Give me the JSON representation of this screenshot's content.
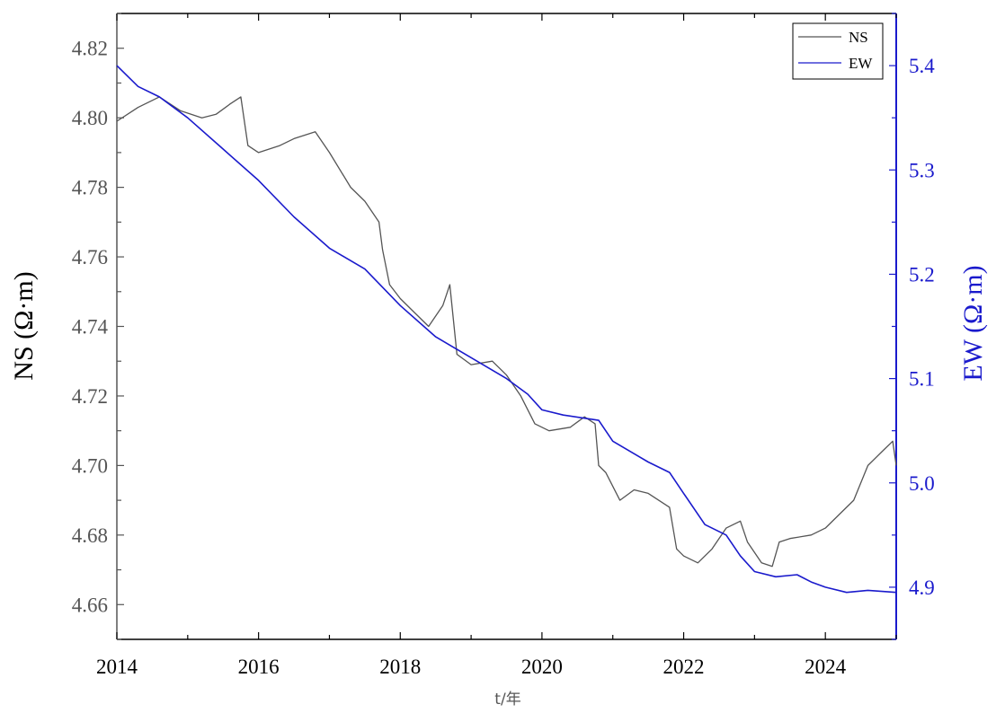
{
  "chart_data": {
    "type": "line",
    "xlabel": "t/年",
    "xlim": [
      2014,
      2025
    ],
    "x_ticks": [
      "2014",
      "2016",
      "2018",
      "2020",
      "2022",
      "2024"
    ],
    "y_left": {
      "label": "NS (Ω·m)",
      "lim": [
        4.65,
        4.83
      ],
      "ticks": [
        "4.66",
        "4.68",
        "4.70",
        "4.72",
        "4.74",
        "4.76",
        "4.78",
        "4.80",
        "4.82"
      ],
      "color": "#555555"
    },
    "y_right": {
      "label": "EW (Ω·m)",
      "lim": [
        4.85,
        5.45
      ],
      "ticks": [
        "4.9",
        "5.0",
        "5.1",
        "5.2",
        "5.3",
        "5.4"
      ],
      "color": "#1a1acc"
    },
    "legend": {
      "position": "top-right",
      "entries": [
        "NS",
        "EW"
      ]
    },
    "series": [
      {
        "name": "NS",
        "axis": "left",
        "color": "#555555",
        "x": [
          2014.0,
          2014.3,
          2014.6,
          2014.9,
          2015.2,
          2015.4,
          2015.6,
          2015.75,
          2015.85,
          2016.0,
          2016.3,
          2016.5,
          2016.8,
          2017.0,
          2017.3,
          2017.5,
          2017.7,
          2017.75,
          2017.85,
          2018.0,
          2018.2,
          2018.4,
          2018.6,
          2018.7,
          2018.8,
          2019.0,
          2019.3,
          2019.5,
          2019.7,
          2019.9,
          2020.1,
          2020.4,
          2020.6,
          2020.75,
          2020.8,
          2020.9,
          2021.1,
          2021.3,
          2021.5,
          2021.8,
          2021.9,
          2022.0,
          2022.2,
          2022.4,
          2022.6,
          2022.8,
          2022.9,
          2023.1,
          2023.25,
          2023.35,
          2023.5,
          2023.8,
          2024.0,
          2024.2,
          2024.4,
          2024.6,
          2024.8,
          2024.95,
          2025.0
        ],
        "values": [
          4.799,
          4.803,
          4.806,
          4.802,
          4.8,
          4.801,
          4.804,
          4.806,
          4.792,
          4.79,
          4.792,
          4.794,
          4.796,
          4.79,
          4.78,
          4.776,
          4.77,
          4.762,
          4.752,
          4.748,
          4.744,
          4.74,
          4.746,
          4.752,
          4.732,
          4.729,
          4.73,
          4.726,
          4.72,
          4.712,
          4.71,
          4.711,
          4.714,
          4.712,
          4.7,
          4.698,
          4.69,
          4.693,
          4.692,
          4.688,
          4.676,
          4.674,
          4.672,
          4.676,
          4.682,
          4.684,
          4.678,
          4.672,
          4.671,
          4.678,
          4.679,
          4.68,
          4.682,
          4.686,
          4.69,
          4.7,
          4.704,
          4.707,
          4.7
        ]
      },
      {
        "name": "EW",
        "axis": "right",
        "color": "#1a1acc",
        "x": [
          2014.0,
          2014.3,
          2014.6,
          2015.0,
          2015.5,
          2016.0,
          2016.5,
          2017.0,
          2017.5,
          2018.0,
          2018.5,
          2019.0,
          2019.5,
          2019.8,
          2020.0,
          2020.3,
          2020.8,
          2021.0,
          2021.5,
          2021.8,
          2022.0,
          2022.3,
          2022.6,
          2022.8,
          2023.0,
          2023.3,
          2023.6,
          2023.8,
          2024.0,
          2024.3,
          2024.6,
          2025.0
        ],
        "values": [
          5.4,
          5.38,
          5.37,
          5.35,
          5.32,
          5.29,
          5.255,
          5.225,
          5.205,
          5.17,
          5.14,
          5.12,
          5.1,
          5.085,
          5.07,
          5.065,
          5.06,
          5.04,
          5.02,
          5.01,
          4.99,
          4.96,
          4.95,
          4.93,
          4.915,
          4.91,
          4.912,
          4.905,
          4.9,
          4.895,
          4.897,
          4.895
        ]
      }
    ]
  }
}
